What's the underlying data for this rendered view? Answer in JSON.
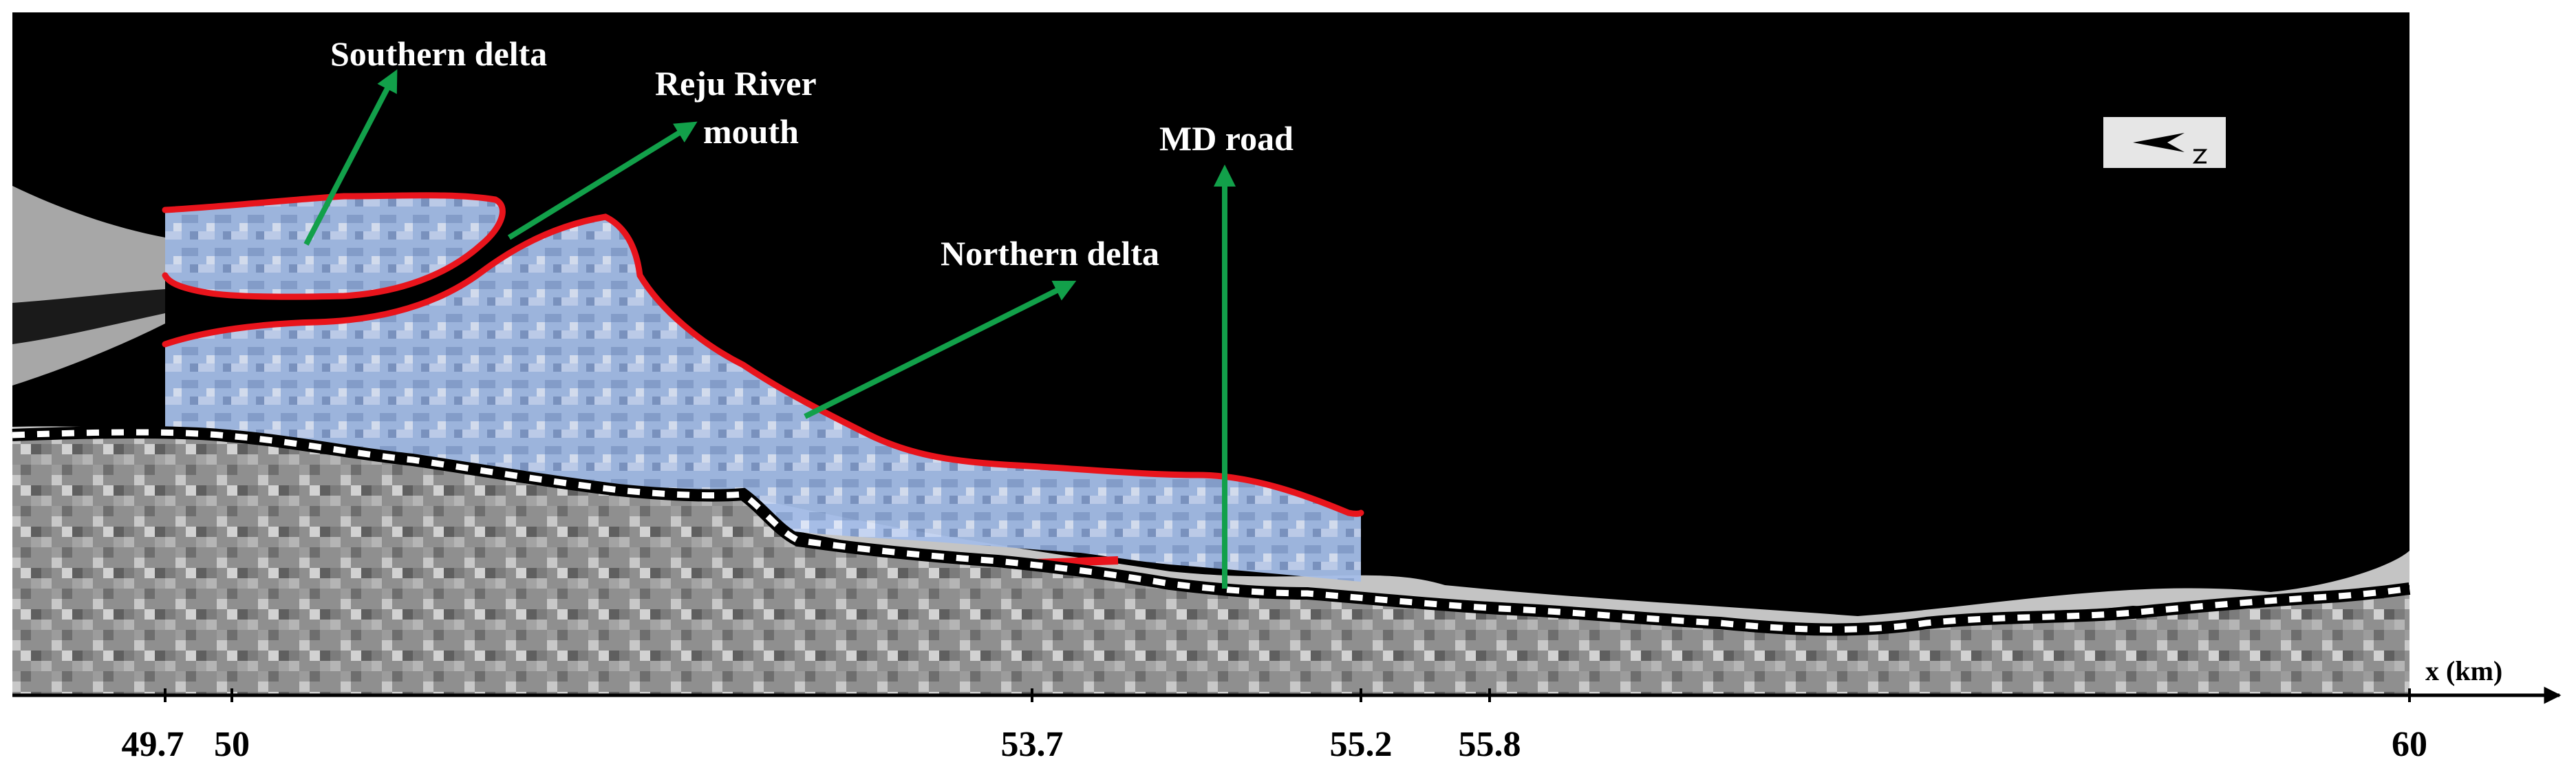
{
  "labels": {
    "southern_delta": "Southern delta",
    "reju_line1": "Reju River",
    "reju_line2": "mouth",
    "md_road": "MD road",
    "northern_delta": "Northern delta"
  },
  "axis": {
    "label": "x (km)",
    "ticks": [
      "49.7",
      "50",
      "53.7",
      "55.2",
      "55.8",
      "60"
    ]
  },
  "icons": {
    "north_arrow": "north-arrow-icon"
  },
  "colors": {
    "sea": "#000000",
    "delta_fill": "#a9c1ea",
    "delta_outline": "#e8141c",
    "pointer_arrow": "#12a04a",
    "road_white": "#ffffff",
    "road_black": "#000000",
    "land": "#9a9a9a"
  }
}
